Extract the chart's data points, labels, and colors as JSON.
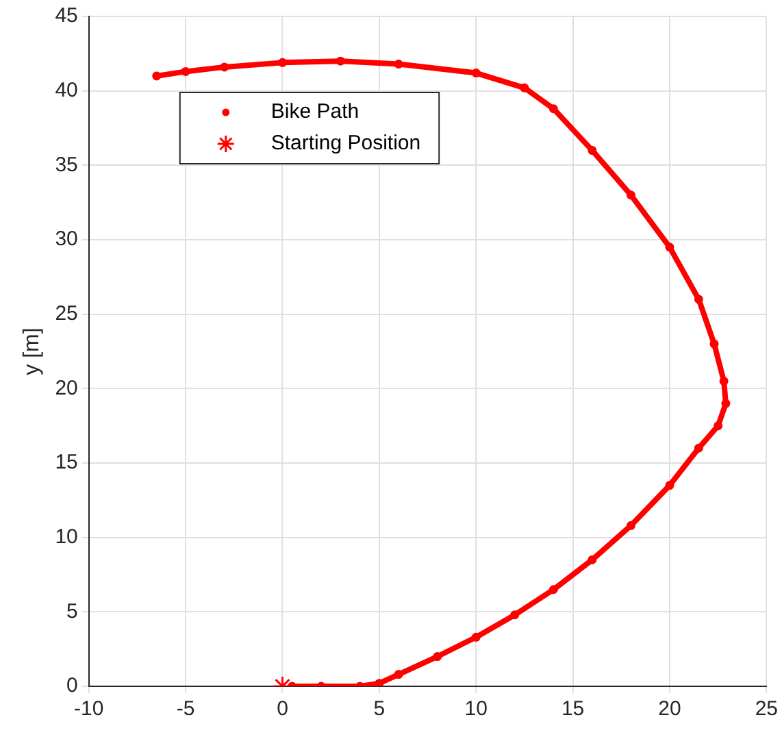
{
  "chart_data": {
    "type": "scatter",
    "ylabel": "y [m]",
    "xlim": [
      -10,
      25
    ],
    "xticks": [
      -10,
      -5,
      0,
      5,
      10,
      15,
      20,
      25
    ],
    "ylim": [
      0,
      45
    ],
    "yticks": [
      0,
      5,
      10,
      15,
      20,
      25,
      30,
      35,
      40,
      45
    ],
    "grid": true,
    "legend": "top left",
    "series": [
      {
        "name": "Bike Path",
        "type": "line",
        "color": "#ff0000",
        "marker": "circle",
        "x": [
          0.5,
          2,
          4,
          5,
          6,
          8,
          10,
          12,
          14,
          16,
          18,
          20,
          21.5,
          22.5,
          22.9,
          22.8,
          22.3,
          21.5,
          20,
          18,
          16,
          14,
          12.5,
          10,
          6,
          3,
          0,
          -3,
          -5,
          -6.5
        ],
        "values": [
          0,
          0,
          0,
          0.2,
          0.8,
          2,
          3.3,
          4.8,
          6.5,
          8.5,
          10.8,
          13.5,
          16,
          17.5,
          19,
          20.5,
          23,
          26,
          29.5,
          33,
          36,
          38.8,
          40.2,
          41.2,
          41.8,
          42,
          41.9,
          41.6,
          41.3,
          41
        ]
      },
      {
        "name": "Starting Position",
        "color": "#ff0000",
        "marker": "cross",
        "x": [
          0
        ],
        "values": [
          0
        ]
      }
    ]
  }
}
